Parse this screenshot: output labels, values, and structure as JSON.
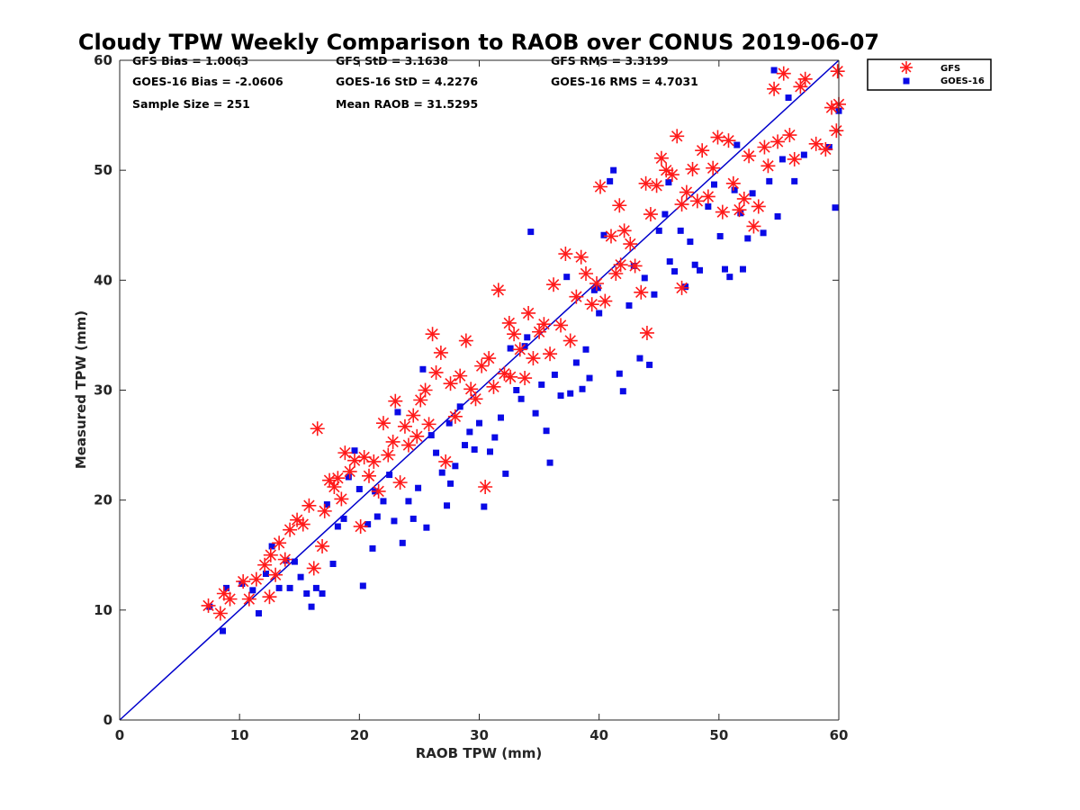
{
  "chart_data": {
    "type": "scatter",
    "title": "Cloudy TPW Weekly Comparison to RAOB over CONUS 2019-06-07",
    "xlabel": "RAOB TPW (mm)",
    "ylabel": "Measured TPW (mm)",
    "xlim": [
      0,
      60
    ],
    "ylim": [
      0,
      60
    ],
    "xticks": [
      "0",
      "10",
      "20",
      "30",
      "40",
      "50",
      "60"
    ],
    "yticks": [
      "0",
      "10",
      "20",
      "30",
      "40",
      "50",
      "60"
    ],
    "grid": false,
    "legend_position": "top-right",
    "reference_line": {
      "from": [
        0,
        0
      ],
      "to": [
        60,
        60
      ],
      "color": "#0000cc"
    },
    "stats": [
      [
        "GFS Bias = 1.0063",
        "GFS StD = 3.1638",
        "GFS RMS = 3.3199"
      ],
      [
        "GOES-16 Bias = -2.0606",
        "GOES-16 StD = 4.2276",
        "GOES-16 RMS = 4.7031"
      ],
      [
        "Sample Size = 251",
        "Mean RAOB = 31.5295",
        ""
      ]
    ],
    "series": [
      {
        "name": "GFS",
        "marker": "asterisk",
        "color": "#ff1a1a",
        "points": [
          [
            7.4,
            10.4
          ],
          [
            8.4,
            9.7
          ],
          [
            8.7,
            11.5
          ],
          [
            9.2,
            11.0
          ],
          [
            10.3,
            12.6
          ],
          [
            10.8,
            11.0
          ],
          [
            11.4,
            12.8
          ],
          [
            12.1,
            14.1
          ],
          [
            12.5,
            11.2
          ],
          [
            12.6,
            15.0
          ],
          [
            13.0,
            13.2
          ],
          [
            13.3,
            16.1
          ],
          [
            13.8,
            14.6
          ],
          [
            14.2,
            17.3
          ],
          [
            14.8,
            18.2
          ],
          [
            15.3,
            17.8
          ],
          [
            15.8,
            19.5
          ],
          [
            16.2,
            13.8
          ],
          [
            16.5,
            26.5
          ],
          [
            16.9,
            15.8
          ],
          [
            17.1,
            19.0
          ],
          [
            17.5,
            21.8
          ],
          [
            17.9,
            21.2
          ],
          [
            18.2,
            22.0
          ],
          [
            18.5,
            20.1
          ],
          [
            18.8,
            24.3
          ],
          [
            19.2,
            22.6
          ],
          [
            19.6,
            23.6
          ],
          [
            20.1,
            17.6
          ],
          [
            20.4,
            23.9
          ],
          [
            20.8,
            22.2
          ],
          [
            21.2,
            23.5
          ],
          [
            21.6,
            20.8
          ],
          [
            22.0,
            27.0
          ],
          [
            22.4,
            24.1
          ],
          [
            22.8,
            25.3
          ],
          [
            23.0,
            29.0
          ],
          [
            23.4,
            21.6
          ],
          [
            23.8,
            26.7
          ],
          [
            24.1,
            25.0
          ],
          [
            24.5,
            27.7
          ],
          [
            24.8,
            25.8
          ],
          [
            25.1,
            29.1
          ],
          [
            25.5,
            30.0
          ],
          [
            25.8,
            26.9
          ],
          [
            26.1,
            35.1
          ],
          [
            26.4,
            31.6
          ],
          [
            26.8,
            33.4
          ],
          [
            27.2,
            23.5
          ],
          [
            27.6,
            30.6
          ],
          [
            28.0,
            27.6
          ],
          [
            28.4,
            31.3
          ],
          [
            28.9,
            34.5
          ],
          [
            29.3,
            30.1
          ],
          [
            29.7,
            29.2
          ],
          [
            30.2,
            32.2
          ],
          [
            30.5,
            21.2
          ],
          [
            30.8,
            32.9
          ],
          [
            31.2,
            30.3
          ],
          [
            31.6,
            39.1
          ],
          [
            32.1,
            31.5
          ],
          [
            32.5,
            36.1
          ],
          [
            32.9,
            35.1
          ],
          [
            33.4,
            33.7
          ],
          [
            33.8,
            31.1
          ],
          [
            34.1,
            37.0
          ],
          [
            34.5,
            32.9
          ],
          [
            35.0,
            35.3
          ],
          [
            35.4,
            36.0
          ],
          [
            35.9,
            33.3
          ],
          [
            36.2,
            39.6
          ],
          [
            36.8,
            35.9
          ],
          [
            37.2,
            42.4
          ],
          [
            37.6,
            34.5
          ],
          [
            38.1,
            38.5
          ],
          [
            38.5,
            42.1
          ],
          [
            38.9,
            40.6
          ],
          [
            39.4,
            37.8
          ],
          [
            39.8,
            39.7
          ],
          [
            40.1,
            48.5
          ],
          [
            40.5,
            38.1
          ],
          [
            41.0,
            44.0
          ],
          [
            41.4,
            40.6
          ],
          [
            41.8,
            41.4
          ],
          [
            42.1,
            44.5
          ],
          [
            42.6,
            43.3
          ],
          [
            43.0,
            41.3
          ],
          [
            43.5,
            38.9
          ],
          [
            43.9,
            48.8
          ],
          [
            44.3,
            46.0
          ],
          [
            44.8,
            48.6
          ],
          [
            45.2,
            51.1
          ],
          [
            45.6,
            50.0
          ],
          [
            46.1,
            49.6
          ],
          [
            46.5,
            53.1
          ],
          [
            46.9,
            46.9
          ],
          [
            47.3,
            48.0
          ],
          [
            47.8,
            50.1
          ],
          [
            48.2,
            47.2
          ],
          [
            48.6,
            51.8
          ],
          [
            49.1,
            47.6
          ],
          [
            49.5,
            50.2
          ],
          [
            49.9,
            53.0
          ],
          [
            50.3,
            46.2
          ],
          [
            50.8,
            52.7
          ],
          [
            51.2,
            48.8
          ],
          [
            51.7,
            46.4
          ],
          [
            52.1,
            47.4
          ],
          [
            52.5,
            51.3
          ],
          [
            52.9,
            44.9
          ],
          [
            53.3,
            46.7
          ],
          [
            53.8,
            52.1
          ],
          [
            54.1,
            50.4
          ],
          [
            54.6,
            57.4
          ],
          [
            54.9,
            52.6
          ],
          [
            55.4,
            58.8
          ],
          [
            55.9,
            53.2
          ],
          [
            56.3,
            51.0
          ],
          [
            56.8,
            57.6
          ],
          [
            57.2,
            58.3
          ],
          [
            58.1,
            52.4
          ],
          [
            58.9,
            51.9
          ],
          [
            59.4,
            55.7
          ],
          [
            59.8,
            53.6
          ],
          [
            59.9,
            59.0
          ],
          [
            60.0,
            56.0
          ],
          [
            32.6,
            31.2
          ],
          [
            41.7,
            46.8
          ],
          [
            44.0,
            35.2
          ],
          [
            46.9,
            39.3
          ]
        ]
      },
      {
        "name": "GOES-16",
        "marker": "square",
        "color": "#0a0ae6",
        "points": [
          [
            7.5,
            10.3
          ],
          [
            8.6,
            8.1
          ],
          [
            8.9,
            12.0
          ],
          [
            10.2,
            12.4
          ],
          [
            11.1,
            11.8
          ],
          [
            11.6,
            9.7
          ],
          [
            12.2,
            13.3
          ],
          [
            12.7,
            15.8
          ],
          [
            13.3,
            12.0
          ],
          [
            13.9,
            14.5
          ],
          [
            14.2,
            12.0
          ],
          [
            14.6,
            14.4
          ],
          [
            15.1,
            13.0
          ],
          [
            15.6,
            11.5
          ],
          [
            16.0,
            10.3
          ],
          [
            16.4,
            12.0
          ],
          [
            16.9,
            11.5
          ],
          [
            17.3,
            19.6
          ],
          [
            17.8,
            14.2
          ],
          [
            18.2,
            17.6
          ],
          [
            18.7,
            18.3
          ],
          [
            19.1,
            22.1
          ],
          [
            19.6,
            24.5
          ],
          [
            20.0,
            21.0
          ],
          [
            20.3,
            12.2
          ],
          [
            20.7,
            17.8
          ],
          [
            21.1,
            15.6
          ],
          [
            21.5,
            18.5
          ],
          [
            22.0,
            19.9
          ],
          [
            22.5,
            22.3
          ],
          [
            22.9,
            18.1
          ],
          [
            23.2,
            28.0
          ],
          [
            23.6,
            16.1
          ],
          [
            24.1,
            19.9
          ],
          [
            24.5,
            18.3
          ],
          [
            24.9,
            21.1
          ],
          [
            25.3,
            31.9
          ],
          [
            25.6,
            17.5
          ],
          [
            26.0,
            25.9
          ],
          [
            26.4,
            24.3
          ],
          [
            26.9,
            22.5
          ],
          [
            27.3,
            19.5
          ],
          [
            27.6,
            21.5
          ],
          [
            28.0,
            23.1
          ],
          [
            28.4,
            28.5
          ],
          [
            28.8,
            25.0
          ],
          [
            29.2,
            26.2
          ],
          [
            29.6,
            24.6
          ],
          [
            30.0,
            27.0
          ],
          [
            30.4,
            19.4
          ],
          [
            30.9,
            24.4
          ],
          [
            31.3,
            25.7
          ],
          [
            31.8,
            27.5
          ],
          [
            32.2,
            22.4
          ],
          [
            32.6,
            33.8
          ],
          [
            33.1,
            30.0
          ],
          [
            33.5,
            29.2
          ],
          [
            34.0,
            34.8
          ],
          [
            34.3,
            44.4
          ],
          [
            34.7,
            27.9
          ],
          [
            35.2,
            30.5
          ],
          [
            35.6,
            26.3
          ],
          [
            35.9,
            23.4
          ],
          [
            36.3,
            31.4
          ],
          [
            36.8,
            29.5
          ],
          [
            37.3,
            40.3
          ],
          [
            37.6,
            29.7
          ],
          [
            38.1,
            32.5
          ],
          [
            38.6,
            30.1
          ],
          [
            38.9,
            33.7
          ],
          [
            39.2,
            31.1
          ],
          [
            39.6,
            39.1
          ],
          [
            40.0,
            37.0
          ],
          [
            40.4,
            44.1
          ],
          [
            40.9,
            49.0
          ],
          [
            41.2,
            50.0
          ],
          [
            41.7,
            31.5
          ],
          [
            42.0,
            29.9
          ],
          [
            42.5,
            37.7
          ],
          [
            42.9,
            41.3
          ],
          [
            43.4,
            32.9
          ],
          [
            43.8,
            40.2
          ],
          [
            44.2,
            32.3
          ],
          [
            44.6,
            38.7
          ],
          [
            45.0,
            44.5
          ],
          [
            45.5,
            46.0
          ],
          [
            45.9,
            41.7
          ],
          [
            46.3,
            40.8
          ],
          [
            46.8,
            44.5
          ],
          [
            47.2,
            39.4
          ],
          [
            47.6,
            43.5
          ],
          [
            48.0,
            41.4
          ],
          [
            48.4,
            40.9
          ],
          [
            49.1,
            46.7
          ],
          [
            49.6,
            48.7
          ],
          [
            50.1,
            44.0
          ],
          [
            50.5,
            41.0
          ],
          [
            50.9,
            40.3
          ],
          [
            51.3,
            48.2
          ],
          [
            51.8,
            46.1
          ],
          [
            52.0,
            41.0
          ],
          [
            52.4,
            43.8
          ],
          [
            52.8,
            47.9
          ],
          [
            53.7,
            44.3
          ],
          [
            54.2,
            49.0
          ],
          [
            54.6,
            59.1
          ],
          [
            54.9,
            45.8
          ],
          [
            55.3,
            51.0
          ],
          [
            55.8,
            56.6
          ],
          [
            56.3,
            49.0
          ],
          [
            57.1,
            51.4
          ],
          [
            59.2,
            52.1
          ],
          [
            59.7,
            46.6
          ],
          [
            60.0,
            55.4
          ],
          [
            27.5,
            27.0
          ],
          [
            33.8,
            34.0
          ],
          [
            39.9,
            39.3
          ],
          [
            45.8,
            48.9
          ],
          [
            51.5,
            52.3
          ],
          [
            21.3,
            20.8
          ]
        ]
      }
    ]
  }
}
